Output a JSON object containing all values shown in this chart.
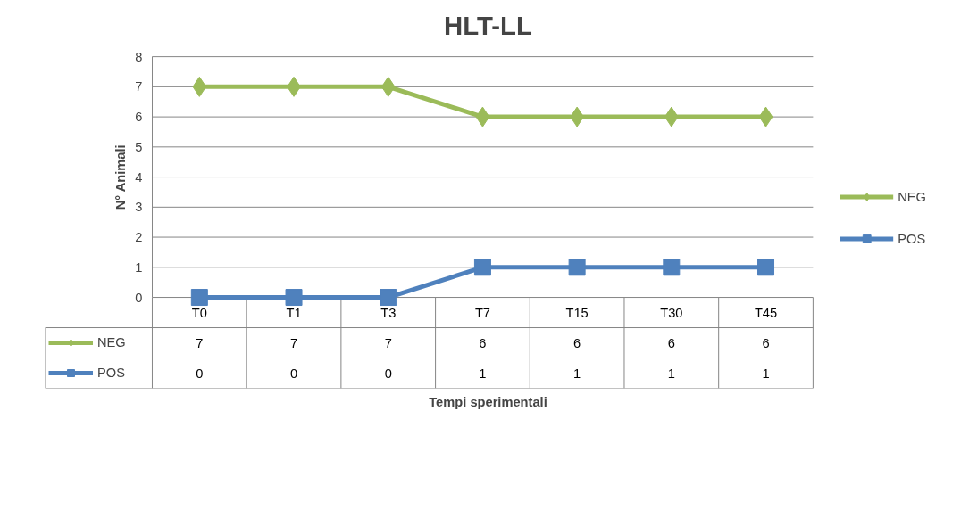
{
  "chart_data": {
    "type": "line",
    "title": "HLT-LL",
    "annotations": [
      "Tempi sperimentali"
    ],
    "ylabel": "N° Animali",
    "categories": [
      "T0",
      "T1",
      "T3",
      "T7",
      "T15",
      "T30",
      "T45"
    ],
    "series": [
      {
        "name": "NEG",
        "color": "#9bbb59",
        "marker": "diamond",
        "values": [
          7,
          7,
          7,
          6,
          6,
          6,
          6
        ]
      },
      {
        "name": "POS",
        "color": "#4f81bd",
        "marker": "square",
        "values": [
          0,
          0,
          0,
          1,
          1,
          1,
          1
        ]
      }
    ],
    "ylim": [
      0,
      8
    ],
    "yticks": [
      0,
      1,
      2,
      3,
      4,
      5,
      6,
      7,
      8
    ],
    "grid": "y",
    "legend": "right",
    "data_labels": true
  }
}
